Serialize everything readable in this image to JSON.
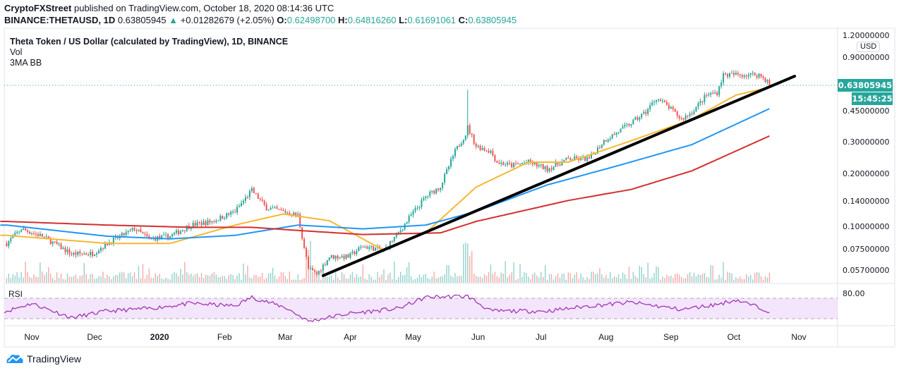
{
  "header": {
    "publisher": "CryptoFXStreet",
    "published_text": "published on TradingView.com, October 18, 2020 08:14:36 UTC",
    "symbol": "BINANCE:THETAUSD, 1D",
    "last": "0.63805945",
    "change": "+0.01282679 (+2.05%)",
    "o_label": "O:",
    "o": "0.62498700",
    "h_label": "H:",
    "h": "0.64816260",
    "l_label": "L:",
    "l": "0.61691061",
    "c_label": "C:",
    "c": "0.63805945"
  },
  "legend": {
    "title": "Theta Token / US Dollar (calculated by TradingView), 1D, BINANCE",
    "vol": "Vol",
    "ma": "3MA BB"
  },
  "price_axis": {
    "currency": "USD",
    "ticks": [
      "1.20000000",
      "0.90000000",
      "0.45000000",
      "0.30000000",
      "0.20000000",
      "0.14000000",
      "0.10000000",
      "0.07500000",
      "0.05700000"
    ],
    "last_price": "0.63805945",
    "countdown": "15:45:25"
  },
  "rsi": {
    "label": "RSI",
    "tick": "80.00"
  },
  "time_axis": [
    "Nov",
    "Dec",
    "2020",
    "Feb",
    "Mar",
    "Apr",
    "May",
    "Jun",
    "Jul",
    "Aug",
    "Sep",
    "Oct",
    "Nov"
  ],
  "brand": "TradingView",
  "colors": {
    "up": "#26a69a",
    "down": "#ef5350",
    "ma50": "#f7b731",
    "ma100": "#2196f3",
    "ma200": "#d32f2f",
    "trendline": "#000000",
    "rsi": "#9c27b0",
    "rsi_band": "#f3e5fc"
  },
  "chart_data": {
    "type": "candlestick",
    "scale": "log",
    "ylim": [
      0.052,
      1.25
    ],
    "xlim": [
      "2019-10-17",
      "2020-11-28"
    ],
    "close_series": [
      [
        "2019-10-20",
        0.082
      ],
      [
        "2019-10-27",
        0.099
      ],
      [
        "2019-11-06",
        0.09
      ],
      [
        "2019-11-20",
        0.0715
      ],
      [
        "2019-11-30",
        0.072
      ],
      [
        "2019-12-07",
        0.082
      ],
      [
        "2019-12-20",
        0.099
      ],
      [
        "2019-12-27",
        0.087
      ],
      [
        "2020-01-06",
        0.09
      ],
      [
        "2020-01-16",
        0.104
      ],
      [
        "2020-01-26",
        0.109
      ],
      [
        "2020-02-06",
        0.124
      ],
      [
        "2020-02-14",
        0.163
      ],
      [
        "2020-02-21",
        0.13
      ],
      [
        "2020-02-29",
        0.124
      ],
      [
        "2020-03-07",
        0.118
      ],
      [
        "2020-03-12",
        0.059
      ],
      [
        "2020-03-16",
        0.055
      ],
      [
        "2020-03-22",
        0.069
      ],
      [
        "2020-03-31",
        0.069
      ],
      [
        "2020-04-07",
        0.079
      ],
      [
        "2020-04-17",
        0.075
      ],
      [
        "2020-04-24",
        0.094
      ],
      [
        "2020-04-30",
        0.118
      ],
      [
        "2020-05-07",
        0.15
      ],
      [
        "2020-05-14",
        0.172
      ],
      [
        "2020-05-21",
        0.27
      ],
      [
        "2020-05-26",
        0.339
      ],
      [
        "2020-05-27",
        0.37
      ],
      [
        "2020-05-31",
        0.29
      ],
      [
        "2020-06-07",
        0.27
      ],
      [
        "2020-06-10",
        0.235
      ],
      [
        "2020-06-17",
        0.225
      ],
      [
        "2020-06-25",
        0.235
      ],
      [
        "2020-07-04",
        0.215
      ],
      [
        "2020-07-14",
        0.245
      ],
      [
        "2020-07-24",
        0.245
      ],
      [
        "2020-07-31",
        0.31
      ],
      [
        "2020-08-07",
        0.35
      ],
      [
        "2020-08-13",
        0.39
      ],
      [
        "2020-08-20",
        0.45
      ],
      [
        "2020-08-25",
        0.54
      ],
      [
        "2020-08-30",
        0.49
      ],
      [
        "2020-09-06",
        0.41
      ],
      [
        "2020-09-11",
        0.45
      ],
      [
        "2020-09-18",
        0.56
      ],
      [
        "2020-09-23",
        0.58
      ],
      [
        "2020-09-26",
        0.73
      ],
      [
        "2020-10-02",
        0.73
      ],
      [
        "2020-10-07",
        0.73
      ],
      [
        "2020-10-13",
        0.73
      ],
      [
        "2020-10-17",
        0.67
      ],
      [
        "2020-10-18",
        0.638
      ]
    ],
    "spike_high": [
      "2020-05-27",
      0.6
    ],
    "series": [
      {
        "name": "MA 50",
        "points": [
          [
            "2019-10-20",
            0.091
          ],
          [
            "2019-12-07",
            0.082
          ],
          [
            "2020-01-06",
            0.082
          ],
          [
            "2020-02-06",
            0.104
          ],
          [
            "2020-02-29",
            0.12
          ],
          [
            "2020-03-22",
            0.11
          ],
          [
            "2020-04-17",
            0.075
          ],
          [
            "2020-05-07",
            0.094
          ],
          [
            "2020-05-31",
            0.17
          ],
          [
            "2020-06-25",
            0.235
          ],
          [
            "2020-07-14",
            0.235
          ],
          [
            "2020-08-13",
            0.31
          ],
          [
            "2020-09-11",
            0.41
          ],
          [
            "2020-10-02",
            0.56
          ],
          [
            "2020-10-18",
            0.62
          ]
        ]
      },
      {
        "name": "MA 100",
        "points": [
          [
            "2019-10-20",
            0.104
          ],
          [
            "2019-12-07",
            0.09
          ],
          [
            "2020-01-06",
            0.087
          ],
          [
            "2020-02-06",
            0.091
          ],
          [
            "2020-03-07",
            0.104
          ],
          [
            "2020-04-07",
            0.099
          ],
          [
            "2020-05-07",
            0.104
          ],
          [
            "2020-05-31",
            0.124
          ],
          [
            "2020-07-04",
            0.175
          ],
          [
            "2020-08-07",
            0.225
          ],
          [
            "2020-09-11",
            0.295
          ],
          [
            "2020-10-18",
            0.47
          ]
        ]
      },
      {
        "name": "MA 200",
        "points": [
          [
            "2019-10-20",
            0.109
          ],
          [
            "2019-12-07",
            0.104
          ],
          [
            "2020-01-16",
            0.101
          ],
          [
            "2020-02-14",
            0.101
          ],
          [
            "2020-03-07",
            0.097
          ],
          [
            "2020-04-07",
            0.092
          ],
          [
            "2020-05-14",
            0.094
          ],
          [
            "2020-05-31",
            0.109
          ],
          [
            "2020-07-14",
            0.143
          ],
          [
            "2020-08-13",
            0.165
          ],
          [
            "2020-09-11",
            0.21
          ],
          [
            "2020-10-18",
            0.33
          ]
        ]
      }
    ],
    "trendline": [
      [
        "2020-03-19",
        0.054
      ],
      [
        "2020-10-30",
        0.716
      ]
    ],
    "rsi": {
      "levels": [
        30,
        70
      ],
      "points": [
        [
          "2019-10-20",
          45
        ],
        [
          "2019-11-01",
          60
        ],
        [
          "2019-11-20",
          32
        ],
        [
          "2019-12-07",
          45
        ],
        [
          "2019-12-27",
          50
        ],
        [
          "2020-01-16",
          60
        ],
        [
          "2020-02-06",
          55
        ],
        [
          "2020-02-14",
          72
        ],
        [
          "2020-03-01",
          52
        ],
        [
          "2020-03-12",
          25
        ],
        [
          "2020-03-31",
          40
        ],
        [
          "2020-04-24",
          50
        ],
        [
          "2020-05-07",
          72
        ],
        [
          "2020-05-27",
          74
        ],
        [
          "2020-06-07",
          45
        ],
        [
          "2020-07-04",
          45
        ],
        [
          "2020-07-24",
          55
        ],
        [
          "2020-08-13",
          62
        ],
        [
          "2020-09-06",
          48
        ],
        [
          "2020-09-23",
          58
        ],
        [
          "2020-10-02",
          67
        ],
        [
          "2020-10-13",
          52
        ],
        [
          "2020-10-18",
          45
        ]
      ]
    }
  }
}
